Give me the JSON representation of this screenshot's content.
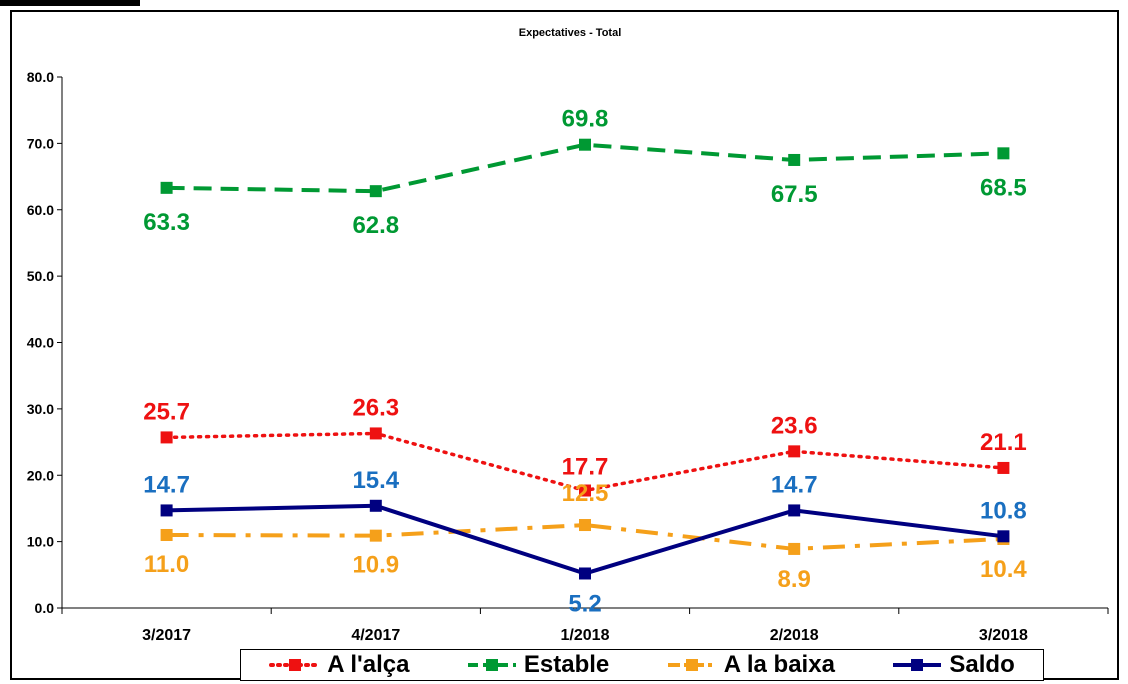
{
  "chart_data": {
    "type": "line",
    "title": "Expectatives - Total",
    "categories": [
      "3/2017",
      "4/2017",
      "1/2018",
      "2/2018",
      "3/2018"
    ],
    "ylim": [
      0,
      80
    ],
    "yticks": [
      "0.0",
      "10.0",
      "20.0",
      "30.0",
      "40.0",
      "50.0",
      "60.0",
      "70.0",
      "80.0"
    ],
    "grid": false,
    "legend_position": "bottom",
    "series": [
      {
        "name": "A l'alça",
        "values": [
          25.7,
          26.3,
          17.7,
          23.6,
          21.1
        ],
        "labels": [
          "25.7",
          "26.3",
          "17.7",
          "23.6",
          "21.1"
        ],
        "color": "#ee1111",
        "line_style": "dotted"
      },
      {
        "name": "Estable",
        "values": [
          63.3,
          62.8,
          69.8,
          67.5,
          68.5
        ],
        "labels": [
          "63.3",
          "62.8",
          "69.8",
          "67.5",
          "68.5"
        ],
        "color": "#009933",
        "line_style": "dashed"
      },
      {
        "name": "A la baixa",
        "values": [
          11.0,
          10.9,
          12.5,
          8.9,
          10.4
        ],
        "labels": [
          "11.0",
          "10.9",
          "12.5",
          "8.9",
          "10.4"
        ],
        "color": "#f5a01a",
        "line_style": "dash-dot"
      },
      {
        "name": "Saldo",
        "values": [
          14.7,
          15.4,
          5.2,
          14.7,
          10.8
        ],
        "labels": [
          "14.7",
          "15.4",
          "5.2",
          "14.7",
          "10.8"
        ],
        "color": "#000080",
        "line_style": "solid",
        "label_color": "#1a6fc0"
      }
    ]
  }
}
